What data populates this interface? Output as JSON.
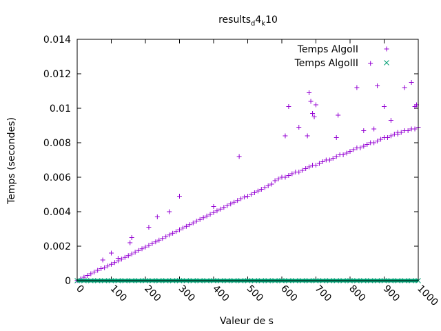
{
  "chart_data": {
    "type": "scatter",
    "title": {
      "base": "results",
      "sub1": "d",
      "mid": "4",
      "sub2": "k",
      "tail": "10"
    },
    "xlabel": "Valeur de s",
    "ylabel": "Temps (secondes)",
    "xlim": [
      0,
      1000
    ],
    "ylim": [
      0,
      0.014
    ],
    "x_ticks": [
      "0",
      "100",
      "200",
      "300",
      "400",
      "500",
      "600",
      "700",
      "800",
      "900",
      "1000"
    ],
    "y_ticks": [
      "0",
      "0.002",
      "0.004",
      "0.006",
      "0.008",
      "0.01",
      "0.012",
      "0.014"
    ],
    "grid": false,
    "legend_position": "top-right",
    "series": [
      {
        "name": "Temps AlgoII",
        "marker": "plus",
        "color": "#9400d3",
        "x": [
          0,
          10,
          20,
          30,
          40,
          50,
          60,
          70,
          80,
          90,
          100,
          110,
          120,
          130,
          140,
          150,
          160,
          170,
          180,
          190,
          200,
          210,
          220,
          230,
          240,
          250,
          260,
          270,
          280,
          290,
          300,
          310,
          320,
          330,
          340,
          350,
          360,
          370,
          380,
          390,
          400,
          410,
          420,
          430,
          440,
          450,
          460,
          470,
          480,
          490,
          500,
          510,
          520,
          530,
          540,
          550,
          560,
          570,
          580,
          590,
          600,
          610,
          620,
          630,
          640,
          650,
          660,
          670,
          680,
          690,
          700,
          710,
          720,
          730,
          740,
          750,
          760,
          770,
          780,
          790,
          800,
          810,
          820,
          830,
          840,
          850,
          860,
          870,
          880,
          890,
          900,
          910,
          920,
          930,
          940,
          950,
          960,
          970,
          980,
          990,
          1000,
          75,
          100,
          120,
          155,
          160,
          210,
          235,
          270,
          300,
          400,
          475,
          610,
          620,
          650,
          675,
          680,
          685,
          690,
          695,
          700,
          760,
          765,
          820,
          840,
          860,
          870,
          880,
          900,
          920,
          940,
          960,
          980,
          990,
          995
        ],
        "y": [
          1e-05,
          0.0001,
          0.0002,
          0.0003,
          0.0004,
          0.0005,
          0.0006,
          0.0007,
          0.00075,
          0.00085,
          0.00095,
          0.00105,
          0.00115,
          0.00125,
          0.00135,
          0.00145,
          0.00155,
          0.00165,
          0.00175,
          0.00185,
          0.00195,
          0.00205,
          0.00215,
          0.00225,
          0.00235,
          0.00245,
          0.00255,
          0.00265,
          0.00275,
          0.00285,
          0.00295,
          0.00305,
          0.00315,
          0.00325,
          0.00335,
          0.00345,
          0.00355,
          0.00365,
          0.00375,
          0.00385,
          0.00395,
          0.00405,
          0.00415,
          0.00425,
          0.00435,
          0.00445,
          0.00455,
          0.00465,
          0.00475,
          0.00485,
          0.0049,
          0.005,
          0.0051,
          0.0052,
          0.0053,
          0.0054,
          0.0055,
          0.0056,
          0.0058,
          0.0059,
          0.006,
          0.006,
          0.0061,
          0.0062,
          0.0063,
          0.0063,
          0.0064,
          0.0065,
          0.0066,
          0.0067,
          0.0067,
          0.0068,
          0.0069,
          0.007,
          0.007,
          0.0071,
          0.0072,
          0.0073,
          0.0073,
          0.0074,
          0.0075,
          0.0076,
          0.0077,
          0.0077,
          0.0078,
          0.0079,
          0.008,
          0.008,
          0.0081,
          0.0082,
          0.0083,
          0.0083,
          0.0084,
          0.0085,
          0.0085,
          0.0086,
          0.0087,
          0.0087,
          0.0088,
          0.0088,
          0.0089,
          0.0012,
          0.0016,
          0.0013,
          0.0022,
          0.0025,
          0.0031,
          0.0037,
          0.004,
          0.0049,
          0.0043,
          0.0072,
          0.0084,
          0.0101,
          0.0089,
          0.0084,
          0.0109,
          0.0104,
          0.0097,
          0.0095,
          0.0102,
          0.0083,
          0.0096,
          0.0112,
          0.0087,
          0.0126,
          0.0088,
          0.0113,
          0.0101,
          0.0093,
          0.0086,
          0.0112,
          0.0115,
          0.0101,
          0.0102
        ]
      },
      {
        "name": "Temps AlgoIII",
        "marker": "cross",
        "color": "#009e73",
        "x": [
          0,
          20,
          40,
          60,
          80,
          100,
          120,
          140,
          160,
          180,
          200,
          220,
          240,
          260,
          280,
          300,
          320,
          340,
          360,
          380,
          400,
          420,
          440,
          460,
          480,
          500,
          520,
          540,
          560,
          580,
          600,
          620,
          640,
          660,
          680,
          700,
          720,
          740,
          760,
          780,
          800,
          820,
          840,
          860,
          880,
          900,
          920,
          940,
          960,
          980,
          1000
        ],
        "y": [
          0,
          0,
          0,
          0,
          0,
          0,
          0,
          0,
          0,
          0,
          0,
          0,
          0,
          0,
          0,
          0,
          0,
          0,
          0,
          0,
          0,
          0,
          0,
          0,
          0,
          0,
          0,
          0,
          0,
          0,
          0,
          0,
          0,
          0,
          0,
          0,
          0,
          0,
          0,
          0,
          0,
          0,
          0,
          0,
          0,
          0,
          0,
          0,
          0,
          0,
          0
        ]
      }
    ]
  }
}
